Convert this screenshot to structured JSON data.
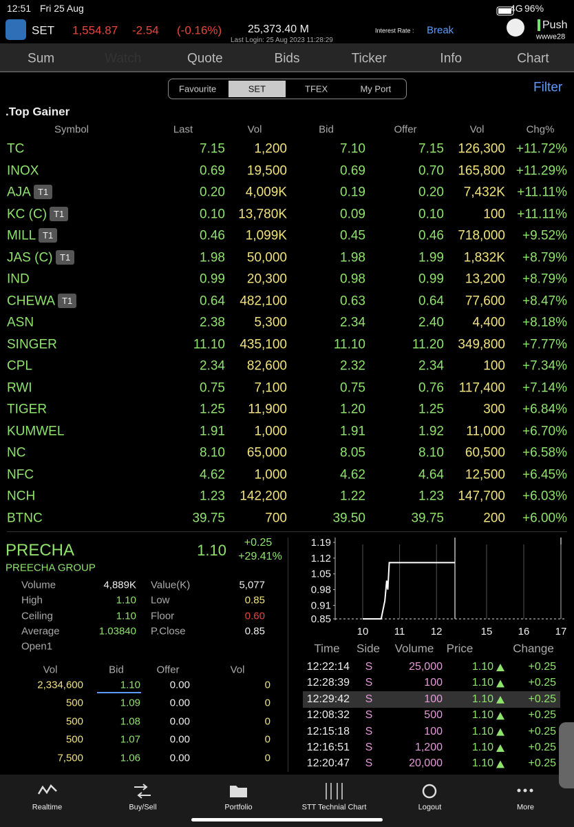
{
  "status_bar": {
    "time": "12:51",
    "date": "Fri 25 Aug",
    "network": "4G",
    "battery": "96%"
  },
  "header": {
    "market": "SET",
    "index": "1,554.87",
    "change": "-2.54",
    "change_pct": "(-0.16%)",
    "value": "25,373.40 M",
    "last_login": "Last Login: 25 Aug 2023 11:28:29",
    "interest_rate_label": "Interest Rate :",
    "status": "Break",
    "push": "Push",
    "user": "wwwe28"
  },
  "tabs": [
    "Sum",
    "Watch",
    "Quote",
    "Bids",
    "Ticker",
    "Info",
    "Chart"
  ],
  "active_tab": 1,
  "segments": [
    "Favourite",
    "SET",
    "TFEX",
    "My Port"
  ],
  "active_segment": 1,
  "filter": "Filter",
  "watchlist": {
    "title": ".Top Gainer",
    "columns": [
      "Symbol",
      "Last",
      "Vol",
      "Bid",
      "Offer",
      "Vol",
      "Chg%"
    ],
    "rows": [
      {
        "symbol": "TC",
        "cells": [
          "7.15",
          "1,200",
          "7.10",
          "7.15",
          "126,300",
          "+11.72%"
        ]
      },
      {
        "symbol": "INOX",
        "cells": [
          "0.69",
          "19,500",
          "0.69",
          "0.70",
          "165,800",
          "+11.29%"
        ]
      },
      {
        "symbol": "AJA",
        "badge": "T1",
        "cells": [
          "0.20",
          "4,009K",
          "0.19",
          "0.20",
          "7,432K",
          "+11.11%"
        ]
      },
      {
        "symbol": "KC (C)",
        "badge": "T1",
        "cells": [
          "0.10",
          "13,780K",
          "0.09",
          "0.10",
          "100",
          "+11.11%"
        ]
      },
      {
        "symbol": "MILL",
        "badge": "T1",
        "cells": [
          "0.46",
          "1,099K",
          "0.45",
          "0.46",
          "718,000",
          "+9.52%"
        ]
      },
      {
        "symbol": "JAS (C)",
        "badge": "T1",
        "cells": [
          "1.98",
          "50,000",
          "1.98",
          "1.99",
          "1,832K",
          "+8.79%"
        ]
      },
      {
        "symbol": "IND",
        "cells": [
          "0.99",
          "20,300",
          "0.98",
          "0.99",
          "13,200",
          "+8.79%"
        ]
      },
      {
        "symbol": "CHEWA",
        "badge": "T1",
        "cells": [
          "0.64",
          "482,100",
          "0.63",
          "0.64",
          "77,600",
          "+8.47%"
        ]
      },
      {
        "symbol": "ASN",
        "cells": [
          "2.38",
          "5,300",
          "2.34",
          "2.40",
          "4,400",
          "+8.18%"
        ]
      },
      {
        "symbol": "SINGER",
        "cells": [
          "11.10",
          "435,100",
          "11.10",
          "11.20",
          "349,800",
          "+7.77%"
        ]
      },
      {
        "symbol": "CPL",
        "cells": [
          "2.34",
          "82,600",
          "2.32",
          "2.34",
          "100",
          "+7.34%"
        ]
      },
      {
        "symbol": "RWI",
        "cells": [
          "0.75",
          "7,100",
          "0.75",
          "0.76",
          "117,400",
          "+7.14%"
        ]
      },
      {
        "symbol": "TIGER",
        "cells": [
          "1.25",
          "11,900",
          "1.20",
          "1.25",
          "300",
          "+6.84%"
        ]
      },
      {
        "symbol": "KUMWEL",
        "cells": [
          "1.91",
          "1,000",
          "1.91",
          "1.92",
          "11,000",
          "+6.70%"
        ]
      },
      {
        "symbol": "NC",
        "cells": [
          "8.10",
          "65,000",
          "8.05",
          "8.10",
          "60,500",
          "+6.58%"
        ]
      },
      {
        "symbol": "NFC",
        "cells": [
          "4.62",
          "1,000",
          "4.62",
          "4.64",
          "12,500",
          "+6.45%"
        ]
      },
      {
        "symbol": "NCH",
        "cells": [
          "1.23",
          "142,200",
          "1.22",
          "1.23",
          "147,700",
          "+6.03%"
        ]
      },
      {
        "symbol": "BTNC",
        "cells": [
          "39.75",
          "700",
          "39.50",
          "39.75",
          "200",
          "+6.00%"
        ]
      }
    ]
  },
  "detail": {
    "symbol": "PRECHA",
    "name": "PREECHA GROUP",
    "last": "1.10",
    "change": "+0.25",
    "change_pct": "+29.41%",
    "stats": [
      [
        "Volume",
        "4,889K",
        "Value(K)",
        "5,077"
      ],
      [
        "High",
        "1.10",
        "Low",
        "0.85"
      ],
      [
        "Ceiling",
        "1.10",
        "Floor",
        "0.60"
      ],
      [
        "Average",
        "1.03840",
        "P.Close",
        "0.85"
      ],
      [
        "Open1"
      ]
    ]
  },
  "bids": {
    "columns": [
      "Vol",
      "Bid",
      "Offer",
      "Vol"
    ],
    "rows": [
      [
        "2,334,600",
        "1.10",
        "0.00",
        "0"
      ],
      [
        "500",
        "1.09",
        "0.00",
        "0"
      ],
      [
        "500",
        "1.08",
        "0.00",
        "0"
      ],
      [
        "500",
        "1.07",
        "0.00",
        "0"
      ],
      [
        "7,500",
        "1.06",
        "0.00",
        "0"
      ]
    ]
  },
  "price_chart": {
    "ylim": [
      0.85,
      1.19
    ],
    "yticks": [
      1.19,
      1.12,
      1.05,
      0.98,
      0.91,
      0.85
    ],
    "xticks": [
      10,
      11,
      12,
      15,
      16,
      17
    ],
    "sessions": [
      [
        10,
        12.5
      ],
      [
        14.5,
        17
      ]
    ],
    "x": [
      10,
      10.5,
      10.6,
      10.65,
      10.68,
      10.72,
      12.5
    ],
    "y": [
      0.85,
      0.85,
      0.93,
      1.02,
      0.98,
      1.1,
      1.1
    ],
    "ref_line": 0.85
  },
  "trades": {
    "columns": [
      "Time",
      "Side",
      "Volume",
      "Price",
      "Change"
    ],
    "highlight": 2,
    "rows": [
      [
        "12:22:14",
        "S",
        "25,000",
        "1.10",
        "+0.25"
      ],
      [
        "12:28:39",
        "S",
        "100",
        "1.10",
        "+0.25"
      ],
      [
        "12:29:42",
        "S",
        "100",
        "1.10",
        "+0.25"
      ],
      [
        "12:08:32",
        "S",
        "500",
        "1.10",
        "+0.25"
      ],
      [
        "12:15:18",
        "S",
        "100",
        "1.10",
        "+0.25"
      ],
      [
        "12:16:51",
        "S",
        "1,200",
        "1.10",
        "+0.25"
      ],
      [
        "12:20:47",
        "S",
        "20,000",
        "1.10",
        "+0.25"
      ]
    ]
  },
  "nav": {
    "items": [
      "Realtime",
      "Buy/Sell",
      "Portfolio",
      "STT Technial Chart",
      "Logout",
      "More"
    ],
    "active": 0
  }
}
